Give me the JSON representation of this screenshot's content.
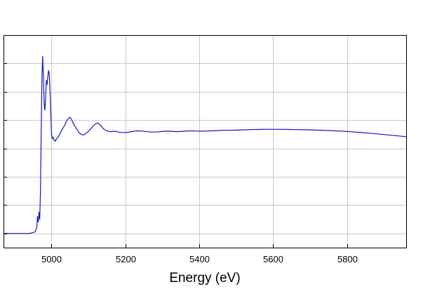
{
  "chart_data": {
    "type": "line",
    "title": "",
    "xlabel": "Energy    (eV)",
    "ylabel": "",
    "xlim": [
      4870,
      5960
    ],
    "ylim": [
      -0.1,
      1.4
    ],
    "grid": true,
    "x_ticks": [
      5000,
      5200,
      5400,
      5600,
      5800
    ],
    "x_tick_labels": [
      "5000",
      "5200",
      "5400",
      "5600",
      "5800"
    ],
    "y_ticks": [
      0.0,
      0.2,
      0.4,
      0.6,
      0.8,
      1.0,
      1.2
    ],
    "colors": {
      "line": "#1515c0",
      "grid": "#c8c8c8",
      "frame": "#000000"
    },
    "series": [
      {
        "x": [
          4870,
          4940,
          4955,
          4960,
          4962,
          4964,
          4966,
          4968,
          4970,
          4972,
          4974,
          4976,
          4978,
          4980,
          4982,
          4984,
          4986,
          4988,
          4990,
          4992,
          4994,
          4996,
          4998,
          5000,
          5002,
          5004,
          5006,
          5008,
          5010,
          5014,
          5018,
          5022,
          5026,
          5030,
          5035,
          5040,
          5045,
          5050,
          5055,
          5060,
          5065,
          5070,
          5075,
          5080,
          5085,
          5090,
          5095,
          5100,
          5105,
          5110,
          5115,
          5120,
          5125,
          5130,
          5135,
          5140,
          5145,
          5150,
          5155,
          5160,
          5165,
          5170,
          5175,
          5180,
          5190,
          5200,
          5210,
          5220,
          5230,
          5240,
          5250,
          5260,
          5270,
          5280,
          5290,
          5300,
          5310,
          5320,
          5330,
          5340,
          5350,
          5360,
          5370,
          5380,
          5390,
          5400,
          5420,
          5440,
          5460,
          5480,
          5500,
          5520,
          5540,
          5560,
          5580,
          5600,
          5620,
          5640,
          5660,
          5680,
          5700,
          5720,
          5740,
          5760,
          5780,
          5800,
          5820,
          5840,
          5860,
          5880,
          5900,
          5920,
          5940,
          5960
        ],
        "y": [
          0.0,
          0.0,
          0.01,
          0.04,
          0.12,
          0.08,
          0.15,
          0.1,
          0.3,
          0.7,
          1.1,
          1.25,
          1.1,
          0.92,
          0.87,
          0.95,
          1.08,
          1.05,
          1.11,
          1.15,
          1.12,
          1.0,
          0.85,
          0.7,
          0.67,
          0.68,
          0.66,
          0.66,
          0.65,
          0.67,
          0.68,
          0.7,
          0.72,
          0.74,
          0.76,
          0.79,
          0.81,
          0.82,
          0.8,
          0.77,
          0.75,
          0.73,
          0.71,
          0.7,
          0.695,
          0.7,
          0.71,
          0.72,
          0.735,
          0.75,
          0.765,
          0.775,
          0.78,
          0.77,
          0.755,
          0.74,
          0.73,
          0.725,
          0.72,
          0.718,
          0.72,
          0.722,
          0.72,
          0.716,
          0.713,
          0.712,
          0.715,
          0.72,
          0.724,
          0.724,
          0.721,
          0.718,
          0.716,
          0.716,
          0.718,
          0.72,
          0.722,
          0.722,
          0.72,
          0.719,
          0.72,
          0.722,
          0.724,
          0.724,
          0.723,
          0.722,
          0.723,
          0.725,
          0.727,
          0.728,
          0.729,
          0.731,
          0.733,
          0.734,
          0.735,
          0.735,
          0.735,
          0.734,
          0.733,
          0.732,
          0.731,
          0.729,
          0.727,
          0.725,
          0.723,
          0.72,
          0.716,
          0.712,
          0.708,
          0.703,
          0.698,
          0.693,
          0.688,
          0.683
        ]
      }
    ]
  }
}
